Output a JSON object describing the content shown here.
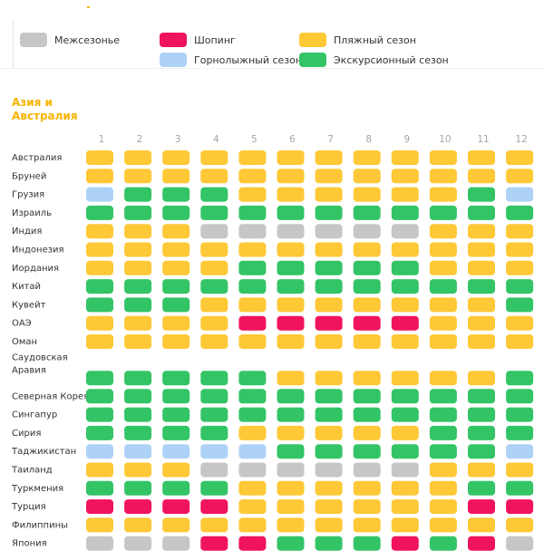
{
  "legend": {
    "items": [
      {
        "key": "off",
        "label": "Межсезонье",
        "color": "#c6c6c6"
      },
      {
        "key": "shop",
        "label": "Шопинг",
        "color": "#f0135d"
      },
      {
        "key": "beach",
        "label": "Пляжный сезон",
        "color": "#fec836"
      },
      {
        "key": "ski",
        "label": "Горнолыжный сезон",
        "color": "#aed2f7"
      },
      {
        "key": "exc",
        "label": "Экскурсионный сезон",
        "color": "#33c466"
      }
    ]
  },
  "region_title": "Азия и Австралия",
  "chart_data": {
    "type": "heatmap",
    "months": [
      "1",
      "2",
      "3",
      "4",
      "5",
      "6",
      "7",
      "8",
      "9",
      "10",
      "11",
      "12"
    ],
    "codes": {
      "B": "Пляжный сезон",
      "E": "Экскурсионный сезон",
      "S": "Шопинг",
      "K": "Горнолыжный сезон",
      "O": "Межсезонье"
    },
    "rows": [
      {
        "country": "Австралия",
        "seasons": "BBBBBBBBBBBB"
      },
      {
        "country": "Бруней",
        "seasons": "BBBBBBBBBBBB"
      },
      {
        "country": "Грузия",
        "seasons": "KEEEBBBBBBEK"
      },
      {
        "country": "Израиль",
        "seasons": "EEEEEEEEEEEE"
      },
      {
        "country": "Индия",
        "seasons": "BBBOOOOOOBBB"
      },
      {
        "country": "Индонезия",
        "seasons": "BBBBBBBBBBBB"
      },
      {
        "country": "Иордания",
        "seasons": "BBBBEEEEEBBB"
      },
      {
        "country": "Китай",
        "seasons": "EEEEEEEEEEEE"
      },
      {
        "country": "Кувейт",
        "seasons": "EEEBBBBBBBBE"
      },
      {
        "country": "ОАЭ",
        "seasons": "BBBBSSSSSBBB"
      },
      {
        "country": "Оман",
        "seasons": "BBBBBBBBBBBB"
      },
      {
        "country": "Саудовская Аравия",
        "seasons": "EEEEEBBBBBBE"
      },
      {
        "country": "Северная Корея",
        "seasons": "EEEEEEEEEEEE"
      },
      {
        "country": "Сингапур",
        "seasons": "EEEEEEEEEEEE"
      },
      {
        "country": "Сирия",
        "seasons": "EEEEBBBBBEEE"
      },
      {
        "country": "Таджикистан",
        "seasons": "KKKKKEEEEEEK"
      },
      {
        "country": "Таиланд",
        "seasons": "BBBOOOOOOBBB"
      },
      {
        "country": "Туркмения",
        "seasons": "EEEEBBBBBBEE"
      },
      {
        "country": "Турция",
        "seasons": "SSSSBBBBBBSS"
      },
      {
        "country": "Филиппины",
        "seasons": "BBBBBBBBBBBB"
      },
      {
        "country": "Япония",
        "seasons": "OOOSSEEESESO"
      }
    ]
  }
}
